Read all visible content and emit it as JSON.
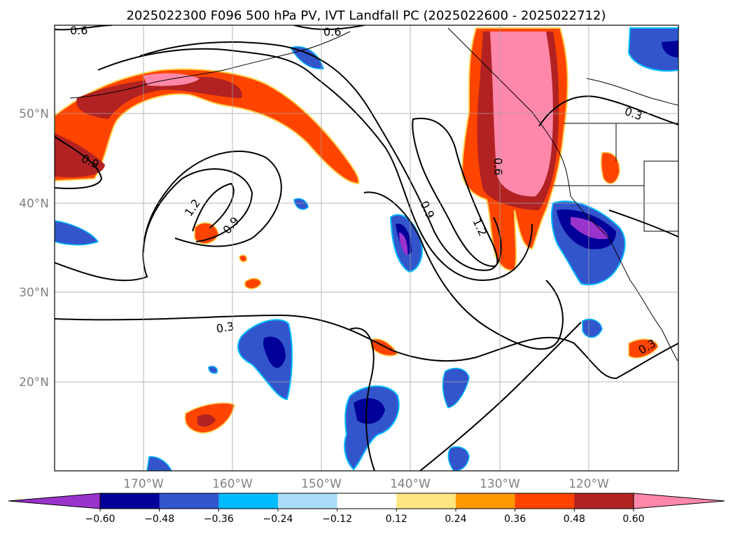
{
  "title": "2025022300 F096 500 hPa PV, IVT Landfall PC (2025022600 - 2025022712)",
  "map": {
    "lat_labels": [
      "50°N",
      "40°N",
      "30°N",
      "20°N"
    ],
    "lon_labels": [
      "170°W",
      "160°W",
      "150°W",
      "140°W",
      "130°W",
      "120°W"
    ],
    "contour_labels": [
      "0.6",
      "0.6",
      "0.3",
      "0.9",
      "0.6",
      "1.2",
      "0.9",
      "1.2",
      "0.9",
      "0.3",
      "0.3"
    ]
  },
  "colorbar": {
    "ticks": [
      "−0.60",
      "−0.48",
      "−0.36",
      "−0.24",
      "−0.12",
      "0.12",
      "0.24",
      "0.36",
      "0.48",
      "0.60"
    ],
    "colors": [
      "#9933cc",
      "#000099",
      "#3355cc",
      "#00bbff",
      "#aaddf7",
      "#ffffff",
      "#ffe680",
      "#ff9900",
      "#ff4400",
      "#b22222",
      "#ff88aa"
    ]
  }
}
